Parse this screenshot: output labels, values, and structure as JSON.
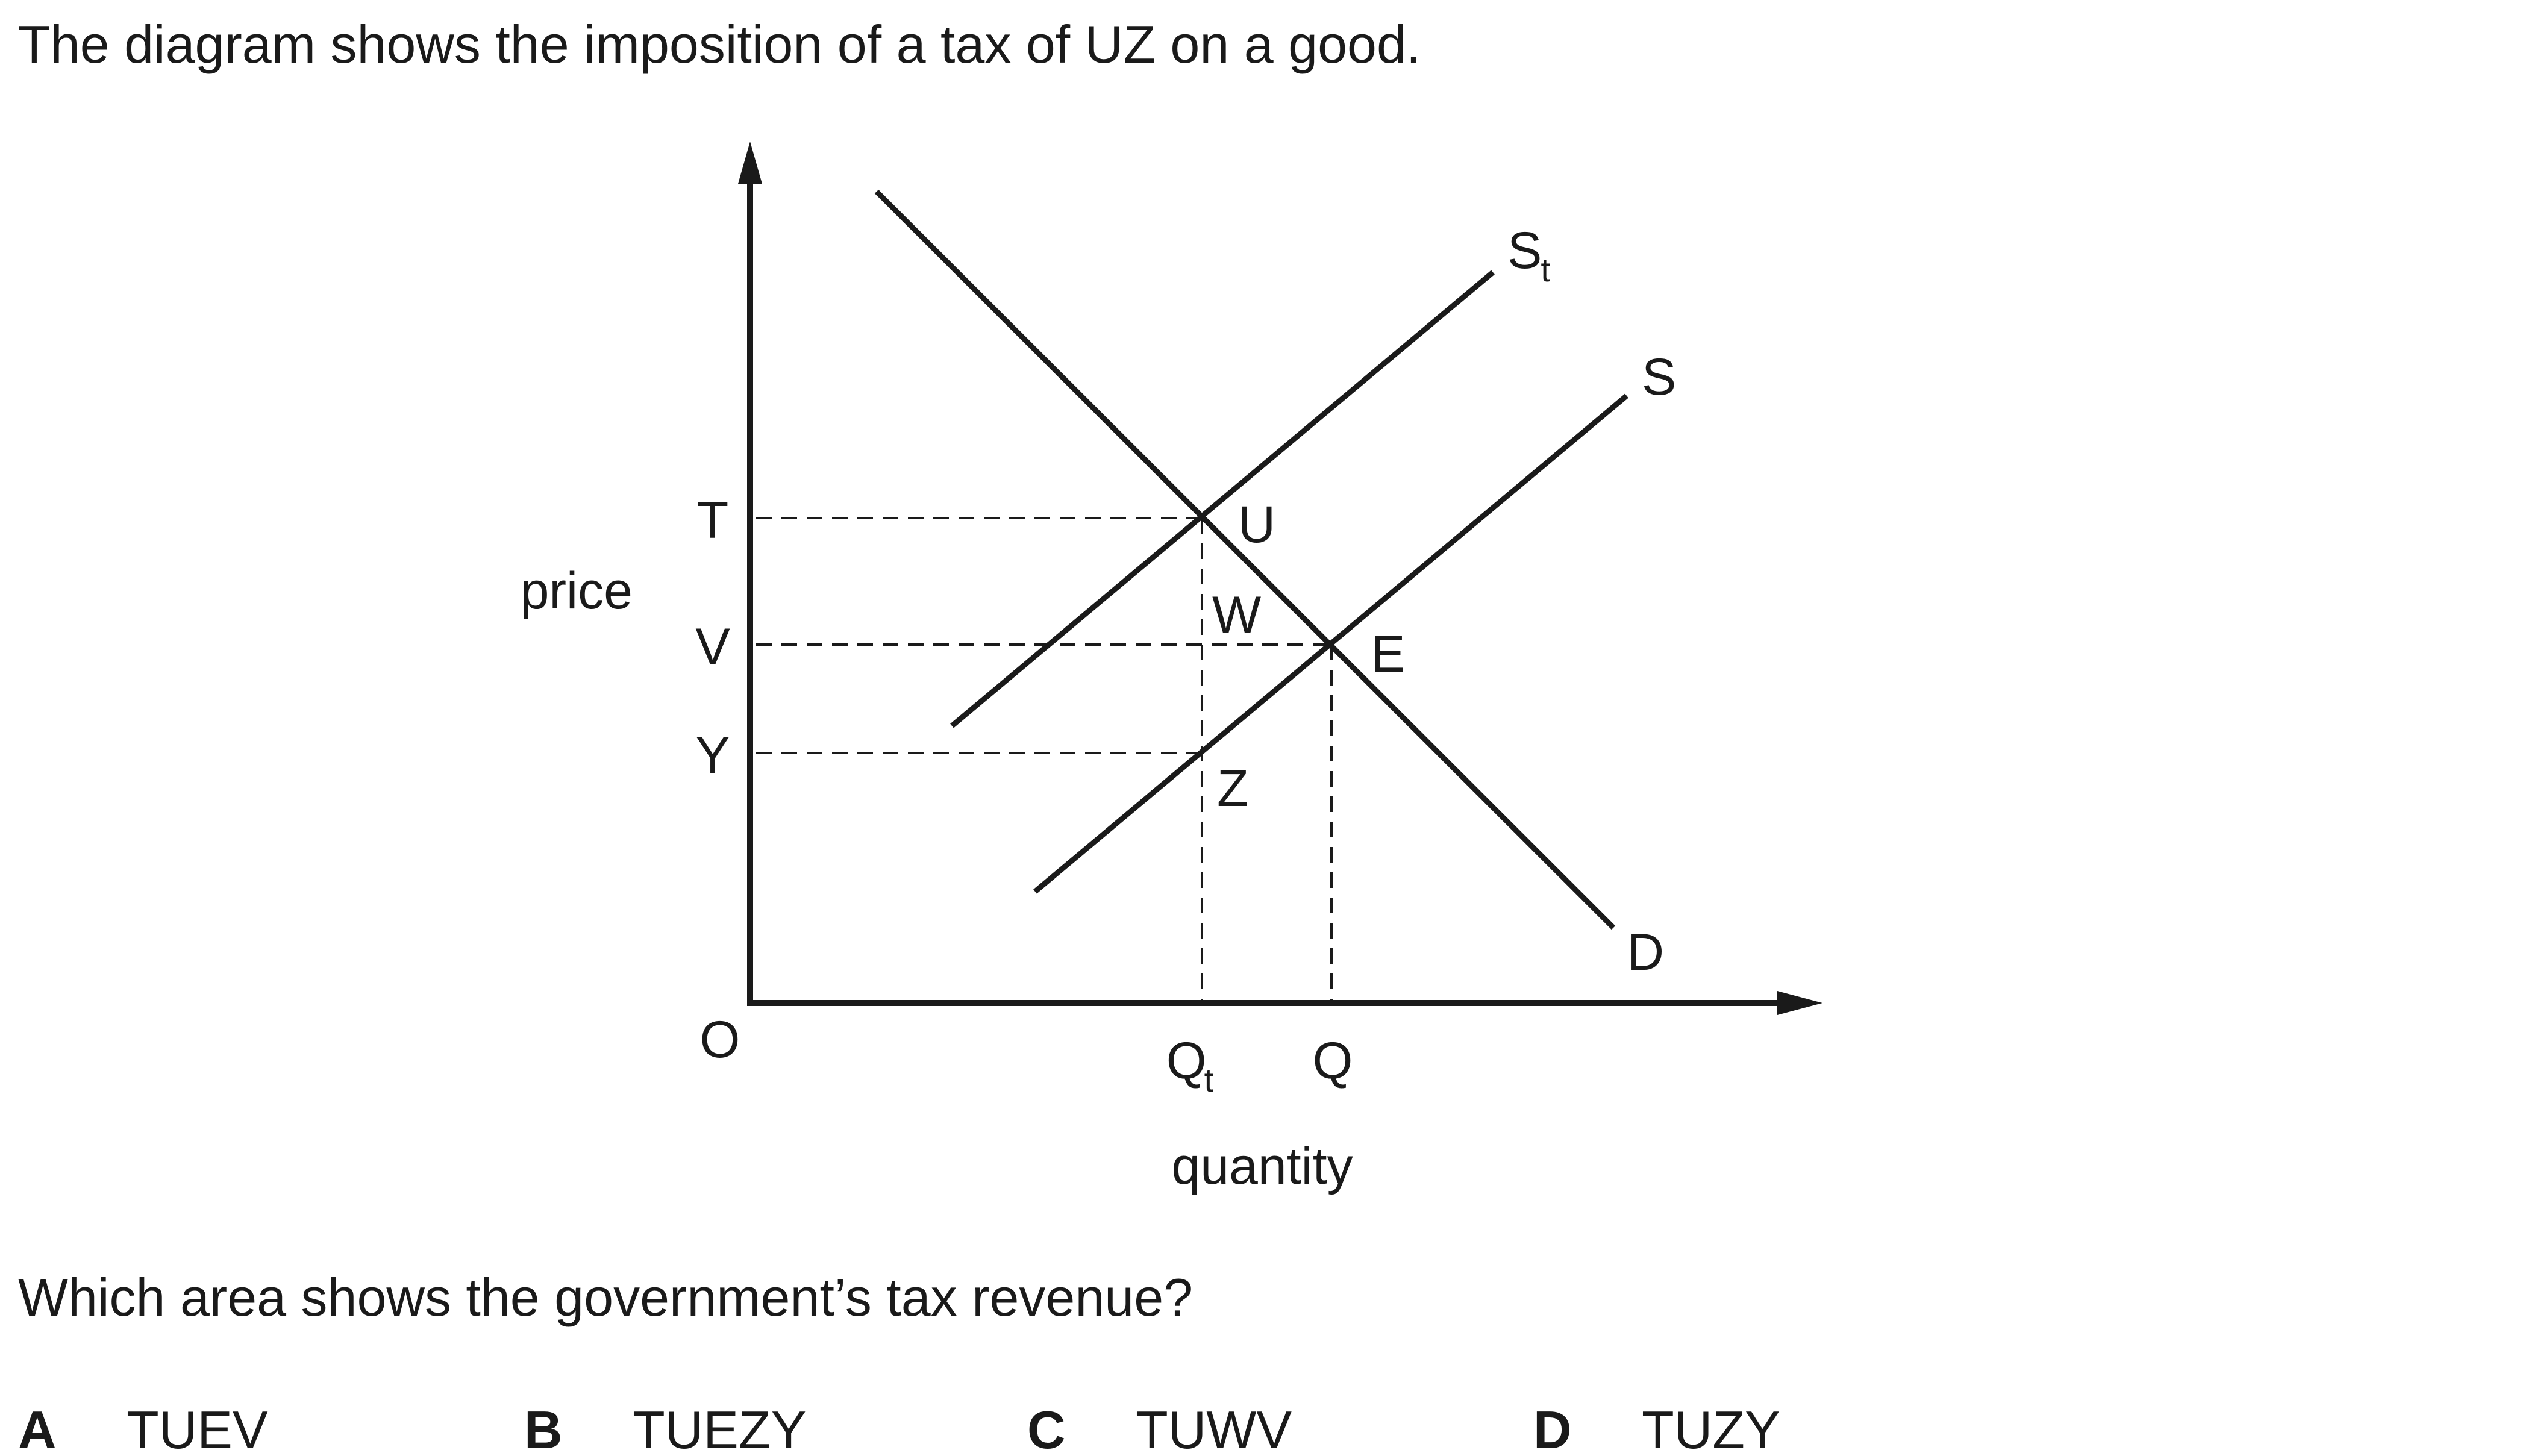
{
  "question": {
    "intro": "The diagram shows the imposition of a tax of UZ on a good.",
    "prompt": "Which area shows the government’s tax revenue?",
    "options": [
      {
        "letter": "A",
        "text": "TUEV"
      },
      {
        "letter": "B",
        "text": "TUEZY"
      },
      {
        "letter": "C",
        "text": "TUWV"
      },
      {
        "letter": "D",
        "text": "TUZY"
      }
    ]
  },
  "diagram": {
    "y_axis_label": "price",
    "x_axis_label": "quantity",
    "origin_label": "O",
    "price_labels": {
      "T": "T",
      "V": "V",
      "Y": "Y"
    },
    "quantity_labels": {
      "Qt_main": "Q",
      "Qt_sub": "t",
      "Q": "Q"
    },
    "point_labels": {
      "U": "U",
      "W": "W",
      "E": "E",
      "Z": "Z"
    },
    "curve_labels": {
      "St_main": "S",
      "St_sub": "t",
      "S": "S",
      "D": "D"
    }
  }
}
